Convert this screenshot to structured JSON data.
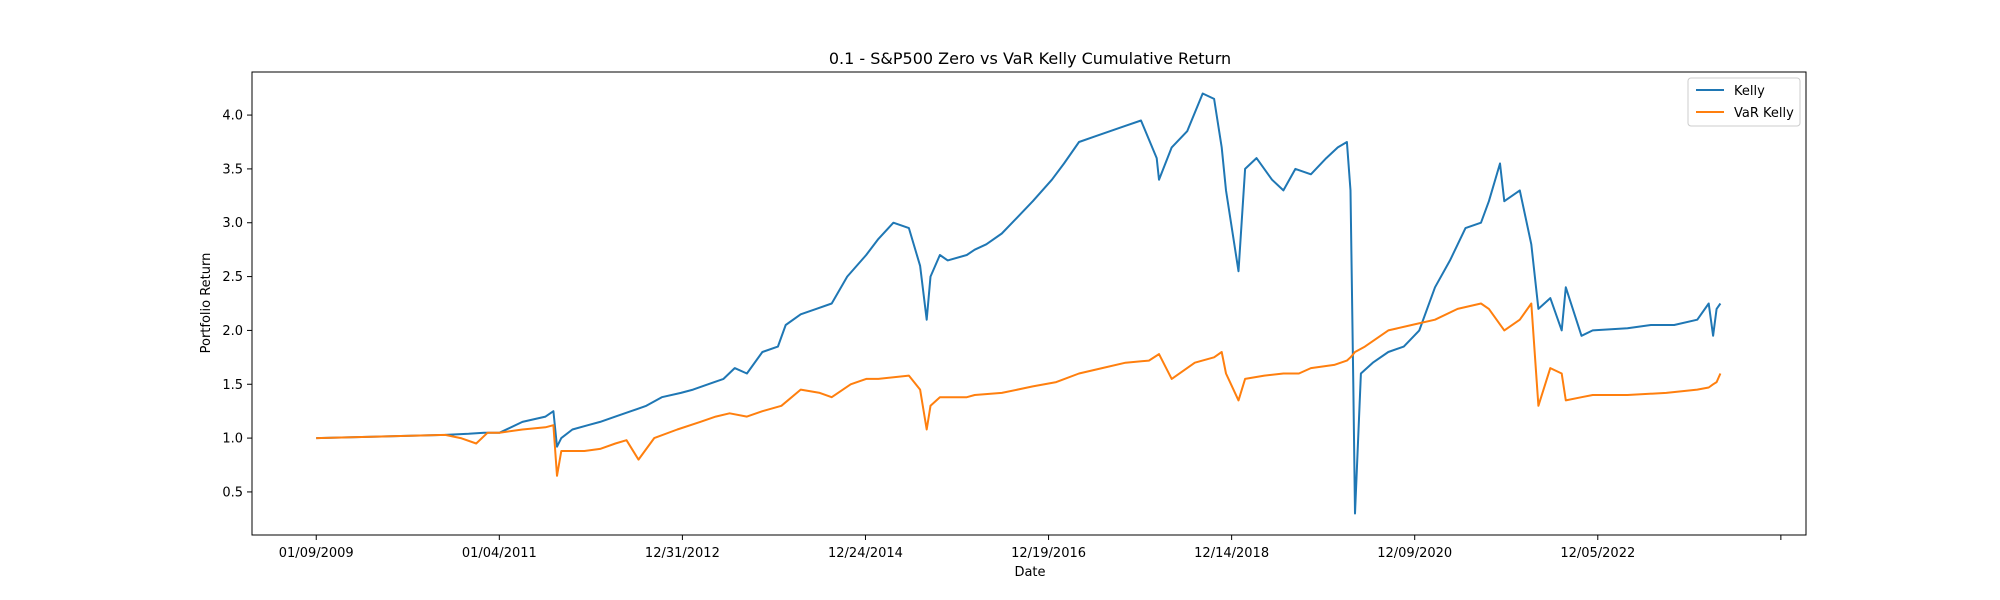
{
  "chart_data": {
    "type": "line",
    "title": "0.1 - S&P500 Zero vs VaR Kelly Cumulative Return",
    "xlabel": "Date",
    "ylabel": "Portfolio Return",
    "x_ticks": [
      "01/09/2009",
      "01/04/2011",
      "12/31/2012",
      "12/24/2014",
      "12/19/2016",
      "12/14/2018",
      "12/09/2020",
      "12/05/2022",
      ""
    ],
    "y_ticks": [
      "0.5",
      "1.0",
      "1.5",
      "2.0",
      "2.5",
      "3.0",
      "3.5",
      "4.0"
    ],
    "xlim": [
      "2008-05-01",
      "2025-02-01"
    ],
    "ylim": [
      0.1,
      4.4
    ],
    "grid": false,
    "legend_position": "top-right",
    "series": [
      {
        "name": "Kelly",
        "color": "#1f77b4",
        "x": [
          "2009-01-09",
          "2010-06-01",
          "2010-09-01",
          "2010-11-01",
          "2011-01-01",
          "2011-04-01",
          "2011-07-01",
          "2011-08-01",
          "2011-08-15",
          "2011-09-01",
          "2011-10-15",
          "2011-12-15",
          "2012-02-01",
          "2012-04-01",
          "2012-06-01",
          "2012-08-01",
          "2012-10-01",
          "2012-12-15",
          "2013-02-01",
          "2013-04-01",
          "2013-06-01",
          "2013-07-15",
          "2013-09-01",
          "2013-11-01",
          "2014-01-01",
          "2014-02-01",
          "2014-04-01",
          "2014-06-01",
          "2014-08-01",
          "2014-10-01",
          "2014-12-15",
          "2015-02-01",
          "2015-04-01",
          "2015-06-01",
          "2015-07-15",
          "2015-08-10",
          "2015-08-25",
          "2015-10-01",
          "2015-11-01",
          "2016-01-15",
          "2016-02-15",
          "2016-04-01",
          "2016-06-01",
          "2016-08-01",
          "2016-10-01",
          "2016-12-15",
          "2017-02-01",
          "2017-04-01",
          "2017-06-01",
          "2017-08-01",
          "2017-10-01",
          "2017-12-01",
          "2018-02-01",
          "2018-02-10",
          "2018-04-01",
          "2018-06-01",
          "2018-08-01",
          "2018-09-15",
          "2018-10-15",
          "2018-11-01",
          "2018-12-20",
          "2019-01-15",
          "2019-03-01",
          "2019-05-01",
          "2019-06-15",
          "2019-08-01",
          "2019-10-01",
          "2019-12-01",
          "2020-01-15",
          "2020-02-20",
          "2020-03-05",
          "2020-03-16",
          "2020-03-23",
          "2020-04-15",
          "2020-06-01",
          "2020-08-01",
          "2020-10-01",
          "2020-12-01",
          "2021-02-01",
          "2021-04-01",
          "2021-06-01",
          "2021-08-01",
          "2021-09-01",
          "2021-10-15",
          "2021-11-01",
          "2022-01-01",
          "2022-02-15",
          "2022-03-15",
          "2022-05-01",
          "2022-06-15",
          "2022-07-01",
          "2022-09-01",
          "2022-10-15",
          "2023-03-01",
          "2023-06-01",
          "2023-09-01",
          "2023-12-01",
          "2024-01-15",
          "2024-02-01",
          "2024-02-15",
          "2024-03-01"
        ],
        "y": [
          1.0,
          1.03,
          1.04,
          1.05,
          1.05,
          1.15,
          1.2,
          1.25,
          0.92,
          1.0,
          1.08,
          1.12,
          1.15,
          1.2,
          1.25,
          1.3,
          1.38,
          1.42,
          1.45,
          1.5,
          1.55,
          1.65,
          1.6,
          1.8,
          1.85,
          2.05,
          2.15,
          2.2,
          2.25,
          2.5,
          2.7,
          2.85,
          3.0,
          2.95,
          2.6,
          2.1,
          2.5,
          2.7,
          2.65,
          2.7,
          2.75,
          2.8,
          2.9,
          3.05,
          3.2,
          3.4,
          3.55,
          3.75,
          3.8,
          3.85,
          3.9,
          3.95,
          3.6,
          3.4,
          3.7,
          3.85,
          4.2,
          4.15,
          3.7,
          3.3,
          2.55,
          3.5,
          3.6,
          3.4,
          3.3,
          3.5,
          3.45,
          3.6,
          3.7,
          3.75,
          3.3,
          1.5,
          0.3,
          1.6,
          1.7,
          1.8,
          1.85,
          2.0,
          2.4,
          2.65,
          2.95,
          3.0,
          3.2,
          3.55,
          3.2,
          3.3,
          2.8,
          2.2,
          2.3,
          2.0,
          2.4,
          1.95,
          2.0,
          2.02,
          2.05,
          2.05,
          2.1,
          2.25,
          1.95,
          2.2,
          2.25
        ]
      },
      {
        "name": "VaR Kelly",
        "color": "#ff7f0e",
        "x": [
          "2009-01-09",
          "2010-06-01",
          "2010-08-01",
          "2010-10-01",
          "2010-11-15",
          "2011-01-01",
          "2011-04-01",
          "2011-07-01",
          "2011-08-01",
          "2011-08-15",
          "2011-09-01",
          "2011-12-01",
          "2012-02-01",
          "2012-04-01",
          "2012-05-15",
          "2012-07-01",
          "2012-09-01",
          "2012-12-01",
          "2013-03-01",
          "2013-05-01",
          "2013-06-25",
          "2013-09-01",
          "2013-11-01",
          "2014-01-15",
          "2014-04-01",
          "2014-06-15",
          "2014-08-01",
          "2014-10-15",
          "2014-12-15",
          "2015-02-01",
          "2015-06-01",
          "2015-07-15",
          "2015-08-10",
          "2015-08-25",
          "2015-10-01",
          "2016-01-15",
          "2016-02-15",
          "2016-06-01",
          "2016-10-01",
          "2017-01-01",
          "2017-04-01",
          "2017-07-01",
          "2017-10-01",
          "2018-01-01",
          "2018-02-10",
          "2018-04-01",
          "2018-07-01",
          "2018-09-15",
          "2018-10-15",
          "2018-11-01",
          "2018-12-20",
          "2019-01-15",
          "2019-04-01",
          "2019-06-15",
          "2019-08-15",
          "2019-10-01",
          "2020-01-01",
          "2020-02-20",
          "2020-03-05",
          "2020-03-16",
          "2020-03-23",
          "2020-05-01",
          "2020-08-01",
          "2020-11-01",
          "2021-02-01",
          "2021-05-01",
          "2021-08-01",
          "2021-09-01",
          "2021-11-01",
          "2022-01-01",
          "2022-02-15",
          "2022-03-15",
          "2022-05-01",
          "2022-06-15",
          "2022-07-01",
          "2022-09-01",
          "2022-10-15",
          "2023-03-01",
          "2023-08-01",
          "2023-12-01",
          "2024-01-15",
          "2024-02-01",
          "2024-02-15",
          "2024-03-01"
        ],
        "y": [
          1.0,
          1.03,
          1.0,
          0.95,
          1.05,
          1.05,
          1.08,
          1.1,
          1.12,
          0.65,
          0.88,
          0.88,
          0.9,
          0.95,
          0.98,
          0.8,
          1.0,
          1.08,
          1.15,
          1.2,
          1.23,
          1.2,
          1.25,
          1.3,
          1.45,
          1.42,
          1.38,
          1.5,
          1.55,
          1.55,
          1.58,
          1.45,
          1.08,
          1.3,
          1.38,
          1.38,
          1.4,
          1.42,
          1.48,
          1.52,
          1.6,
          1.65,
          1.7,
          1.72,
          1.78,
          1.55,
          1.7,
          1.75,
          1.8,
          1.6,
          1.35,
          1.55,
          1.58,
          1.6,
          1.6,
          1.65,
          1.68,
          1.72,
          1.75,
          1.78,
          1.8,
          1.85,
          2.0,
          2.05,
          2.1,
          2.2,
          2.25,
          2.2,
          2.0,
          2.1,
          2.25,
          1.3,
          1.65,
          1.6,
          1.35,
          1.38,
          1.4,
          1.4,
          1.42,
          1.45,
          1.47,
          1.5,
          1.52,
          1.6
        ]
      }
    ]
  }
}
